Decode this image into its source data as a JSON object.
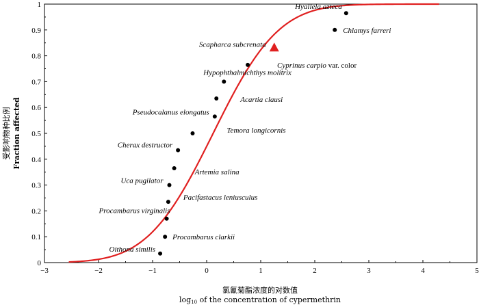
{
  "chart_data": {
    "type": "scatter",
    "xlabel_cn": "氯氰菊酯浓度的对数值",
    "xlabel_prefix": "log",
    "xlabel_sub": "10",
    "xlabel_rest": " of the concentration of cypermethrin",
    "ylabel_cn": "受影响物种比例",
    "ylabel_en": "Fraction affected",
    "xlim": [
      -3,
      5
    ],
    "ylim": [
      0,
      1
    ],
    "xticks": [
      "−3",
      "−2",
      "−1",
      "0",
      "1",
      "2",
      "3",
      "4",
      "5"
    ],
    "yticks": [
      "0",
      "0.1",
      "0.2",
      "0.3",
      "0.4",
      "0.5",
      "0.6",
      "0.7",
      "0.8",
      "0.9",
      "1"
    ],
    "curve": {
      "type": "cumulative-normal",
      "color": "#e02020",
      "x_range": [
        -2.55,
        4.3
      ],
      "mean": 0.12,
      "sd": 0.95
    },
    "points": [
      {
        "x": -0.86,
        "y": 0.035,
        "label": "Oithona similis"
      },
      {
        "x": -0.77,
        "y": 0.1,
        "label": "Procambarus clarkii"
      },
      {
        "x": -0.74,
        "y": 0.17,
        "label": "Procambarus virginalis"
      },
      {
        "x": -0.71,
        "y": 0.235,
        "label": "Pacifastacus leniusculus"
      },
      {
        "x": -0.69,
        "y": 0.3,
        "label": "Uca pugilator"
      },
      {
        "x": -0.6,
        "y": 0.365,
        "label": "Artemia salina"
      },
      {
        "x": -0.53,
        "y": 0.435,
        "label": "Cherax destructor"
      },
      {
        "x": -0.26,
        "y": 0.5,
        "label": "Temora longicornis"
      },
      {
        "x": 0.15,
        "y": 0.565,
        "label": "Pseudocalanus elongatus"
      },
      {
        "x": 0.18,
        "y": 0.635,
        "label": "Acartia clausi"
      },
      {
        "x": 0.32,
        "y": 0.7,
        "label": "Hypophthalmichthys molitrix"
      },
      {
        "x": 0.76,
        "y": 0.765,
        "label": "Cyprinus carpio",
        "label_suffix": " var. color"
      },
      {
        "x": 1.25,
        "y": 0.83,
        "label": "Scapharca subcrenata",
        "marker": "triangle",
        "color": "#e02020"
      },
      {
        "x": 2.37,
        "y": 0.9,
        "label": "Chlamys farreri"
      },
      {
        "x": 2.58,
        "y": 0.965,
        "label": "Hyallela azteca"
      }
    ]
  }
}
